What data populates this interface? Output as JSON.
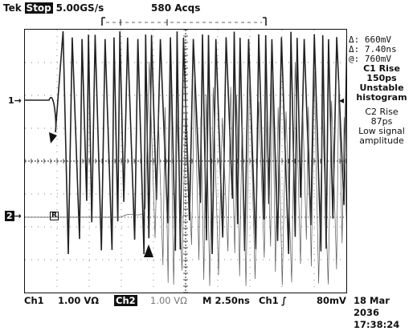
{
  "header": {
    "brand": "Tek",
    "run_state": "Stop",
    "sample_rate": "5.00GS/s",
    "acq_count": "580 Acqs"
  },
  "markers": {
    "ch1": "1",
    "ch2": "2",
    "ref": "R"
  },
  "measurements": {
    "delta_v": "Δ: 660mV",
    "delta_t": "Δ: 7.40ns",
    "at_v": "@: 760mV",
    "c1_label": "C1 Rise",
    "c1_value": "150ps",
    "c1_status1": "Unstable",
    "c1_status2": "histogram",
    "c2_label": "C2 Rise",
    "c2_value": "87ps",
    "c2_status1": "Low signal",
    "c2_status2": "amplitude"
  },
  "footer": {
    "ch1_label": "Ch1",
    "ch1_scale": "1.00 VΩ",
    "ch2_label": "Ch2",
    "ch2_scale": "1.00 VΩ",
    "timebase": "M 2.50ns",
    "trig_source": "Ch1",
    "trig_slope": "∫",
    "trig_level": "80mV",
    "date": "18 Mar 2036",
    "time": "17:38:24"
  },
  "colors": {
    "trace": "#222222",
    "grid": "#555555",
    "background": "#ffffff"
  }
}
